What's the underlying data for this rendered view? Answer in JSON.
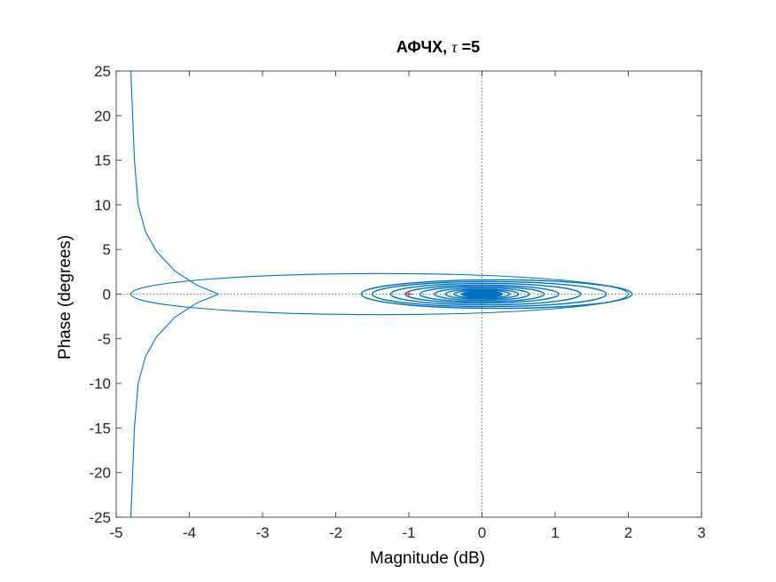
{
  "chart_data": {
    "type": "line",
    "title": {
      "prefix": "АФЧХ,",
      "symbol": "τ",
      "suffix": "=5"
    },
    "xlabel": "Magnitude (dB)",
    "ylabel": "Phase (degrees)",
    "xlim": [
      -5,
      3
    ],
    "ylim": [
      -25,
      25
    ],
    "xticks": [
      -5,
      -4,
      -3,
      -2,
      -1,
      0,
      1,
      2,
      3
    ],
    "yticks": [
      -25,
      -20,
      -15,
      -10,
      -5,
      0,
      5,
      10,
      15,
      20,
      25
    ],
    "xtick_labels": [
      "-5",
      "-4",
      "-3",
      "-2",
      "-1",
      "0",
      "1",
      "2",
      "3"
    ],
    "ytick_labels": [
      "-25",
      "-20",
      "-15",
      "-10",
      "-5",
      "0",
      "5",
      "10",
      "15",
      "20",
      "25"
    ],
    "grid": false,
    "reference_lines": {
      "x": 0,
      "y": 0,
      "style": "dotted"
    },
    "critical_point": {
      "x": -1,
      "y": 0,
      "marker": "+",
      "color": "#d62728"
    },
    "series": [
      {
        "color": "#0072BD",
        "description": "Nyquist locus: two branches tending to -4.8 along the phase axis, crossing at about (-3.6, 0), forming a large loop to about 2.0 and then shrinking spiral loops converging near the origin",
        "branches": [
          {
            "points": [
              [
                -4.8,
                25
              ],
              [
                -4.75,
                15
              ],
              [
                -4.7,
                10
              ],
              [
                -4.6,
                7
              ],
              [
                -4.45,
                4.8
              ],
              [
                -4.2,
                2.6
              ],
              [
                -3.9,
                1.0
              ],
              [
                -3.6,
                0
              ]
            ]
          },
          {
            "points": [
              [
                -4.8,
                -25
              ],
              [
                -4.75,
                -15
              ],
              [
                -4.7,
                -10
              ],
              [
                -4.6,
                -7
              ],
              [
                -4.45,
                -4.8
              ],
              [
                -4.2,
                -2.6
              ],
              [
                -3.9,
                -1.0
              ],
              [
                -3.6,
                0
              ]
            ]
          }
        ],
        "loops": [
          {
            "center": [
              -1.4,
              0
            ],
            "x_half_width": 3.4,
            "y_half_height": 2.3
          },
          {
            "center": [
              0.2,
              0
            ],
            "x_half_width": 1.85,
            "y_half_height": 1.6
          },
          {
            "center": [
              0.1,
              0
            ],
            "x_half_width": 1.6,
            "y_half_height": 1.4
          },
          {
            "center": [
              0.05,
              0
            ],
            "x_half_width": 1.3,
            "y_half_height": 1.2
          },
          {
            "center": [
              0.0,
              0
            ],
            "x_half_width": 1.05,
            "y_half_height": 1.0
          },
          {
            "center": [
              0.0,
              0
            ],
            "x_half_width": 0.85,
            "y_half_height": 0.85
          },
          {
            "center": [
              0.0,
              0
            ],
            "x_half_width": 0.65,
            "y_half_height": 0.7
          },
          {
            "center": [
              0.0,
              0
            ],
            "x_half_width": 0.5,
            "y_half_height": 0.55
          },
          {
            "center": [
              0.0,
              0
            ],
            "x_half_width": 0.38,
            "y_half_height": 0.45
          },
          {
            "center": [
              0.0,
              0
            ],
            "x_half_width": 0.28,
            "y_half_height": 0.35
          }
        ]
      }
    ]
  }
}
